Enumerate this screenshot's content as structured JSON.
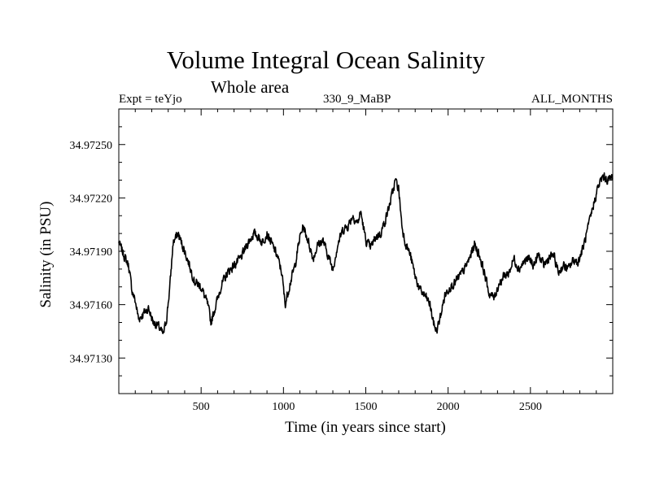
{
  "chart_data": {
    "type": "line",
    "title": "Volume Integral Ocean Salinity",
    "subtitle": "Whole area",
    "header_left": "Expt = teYjo",
    "header_center": "330_9_MaBP",
    "header_right": "ALL_MONTHS",
    "xlabel": "Time (in years since start)",
    "ylabel": "Salinity (in PSU)",
    "xlim": [
      0,
      3000
    ],
    "ylim": [
      34.9711,
      34.9727
    ],
    "xticks": [
      500,
      1000,
      1500,
      2000,
      2500
    ],
    "xtick_labels": [
      "500",
      "1000",
      "1500",
      "2000",
      "2500"
    ],
    "yticks": [
      34.9713,
      34.9716,
      34.9719,
      34.9722,
      34.9725
    ],
    "ytick_labels": [
      "34.97130",
      "34.97160",
      "34.97190",
      "34.97220",
      "34.97250"
    ],
    "grid": false,
    "series": [
      {
        "name": "salinity",
        "noise_amplitude": 3.5e-05,
        "x": [
          0,
          30,
          60,
          80,
          100,
          120,
          150,
          180,
          210,
          240,
          270,
          290,
          310,
          330,
          360,
          400,
          430,
          460,
          500,
          540,
          560,
          590,
          620,
          660,
          700,
          740,
          780,
          820,
          850,
          870,
          900,
          930,
          960,
          990,
          1010,
          1040,
          1070,
          1100,
          1120,
          1150,
          1180,
          1210,
          1240,
          1270,
          1300,
          1330,
          1360,
          1390,
          1420,
          1450,
          1470,
          1500,
          1530,
          1560,
          1590,
          1620,
          1650,
          1680,
          1700,
          1720,
          1740,
          1770,
          1800,
          1830,
          1860,
          1890,
          1910,
          1930,
          1950,
          1980,
          2010,
          2040,
          2070,
          2100,
          2130,
          2160,
          2190,
          2220,
          2250,
          2280,
          2310,
          2340,
          2370,
          2400,
          2430,
          2460,
          2490,
          2520,
          2550,
          2580,
          2610,
          2640,
          2670,
          2700,
          2730,
          2760,
          2790,
          2820,
          2850,
          2880,
          2910,
          2940,
          2970,
          3000
        ],
        "values": [
          34.97195,
          34.97188,
          34.97182,
          34.97168,
          34.97162,
          34.97152,
          34.97155,
          34.97158,
          34.9715,
          34.97148,
          34.97143,
          34.97152,
          34.9717,
          34.97195,
          34.972,
          34.9719,
          34.97182,
          34.97173,
          34.9717,
          34.9716,
          34.9715,
          34.9716,
          34.9717,
          34.97178,
          34.97182,
          34.97186,
          34.97194,
          34.972,
          34.97198,
          34.97195,
          34.972,
          34.97194,
          34.97188,
          34.97178,
          34.9716,
          34.97172,
          34.97182,
          34.97198,
          34.97204,
          34.97196,
          34.97186,
          34.97194,
          34.97196,
          34.97188,
          34.9718,
          34.97194,
          34.97202,
          34.97204,
          34.9721,
          34.97206,
          34.97212,
          34.97196,
          34.97192,
          34.97198,
          34.972,
          34.97208,
          34.97218,
          34.9723,
          34.97225,
          34.97204,
          34.97195,
          34.97188,
          34.97176,
          34.97168,
          34.97165,
          34.9716,
          34.9715,
          34.97145,
          34.97152,
          34.97165,
          34.9717,
          34.97172,
          34.97176,
          34.9718,
          34.97186,
          34.97194,
          34.97188,
          34.97178,
          34.97166,
          34.97164,
          34.97172,
          34.97176,
          34.97178,
          34.97186,
          34.9718,
          34.97184,
          34.97186,
          34.97182,
          34.97188,
          34.97182,
          34.97186,
          34.97188,
          34.97178,
          34.97182,
          34.9718,
          34.97185,
          34.97184,
          34.97192,
          34.97203,
          34.97215,
          34.97226,
          34.97232,
          34.9723,
          34.97232
        ]
      }
    ]
  }
}
